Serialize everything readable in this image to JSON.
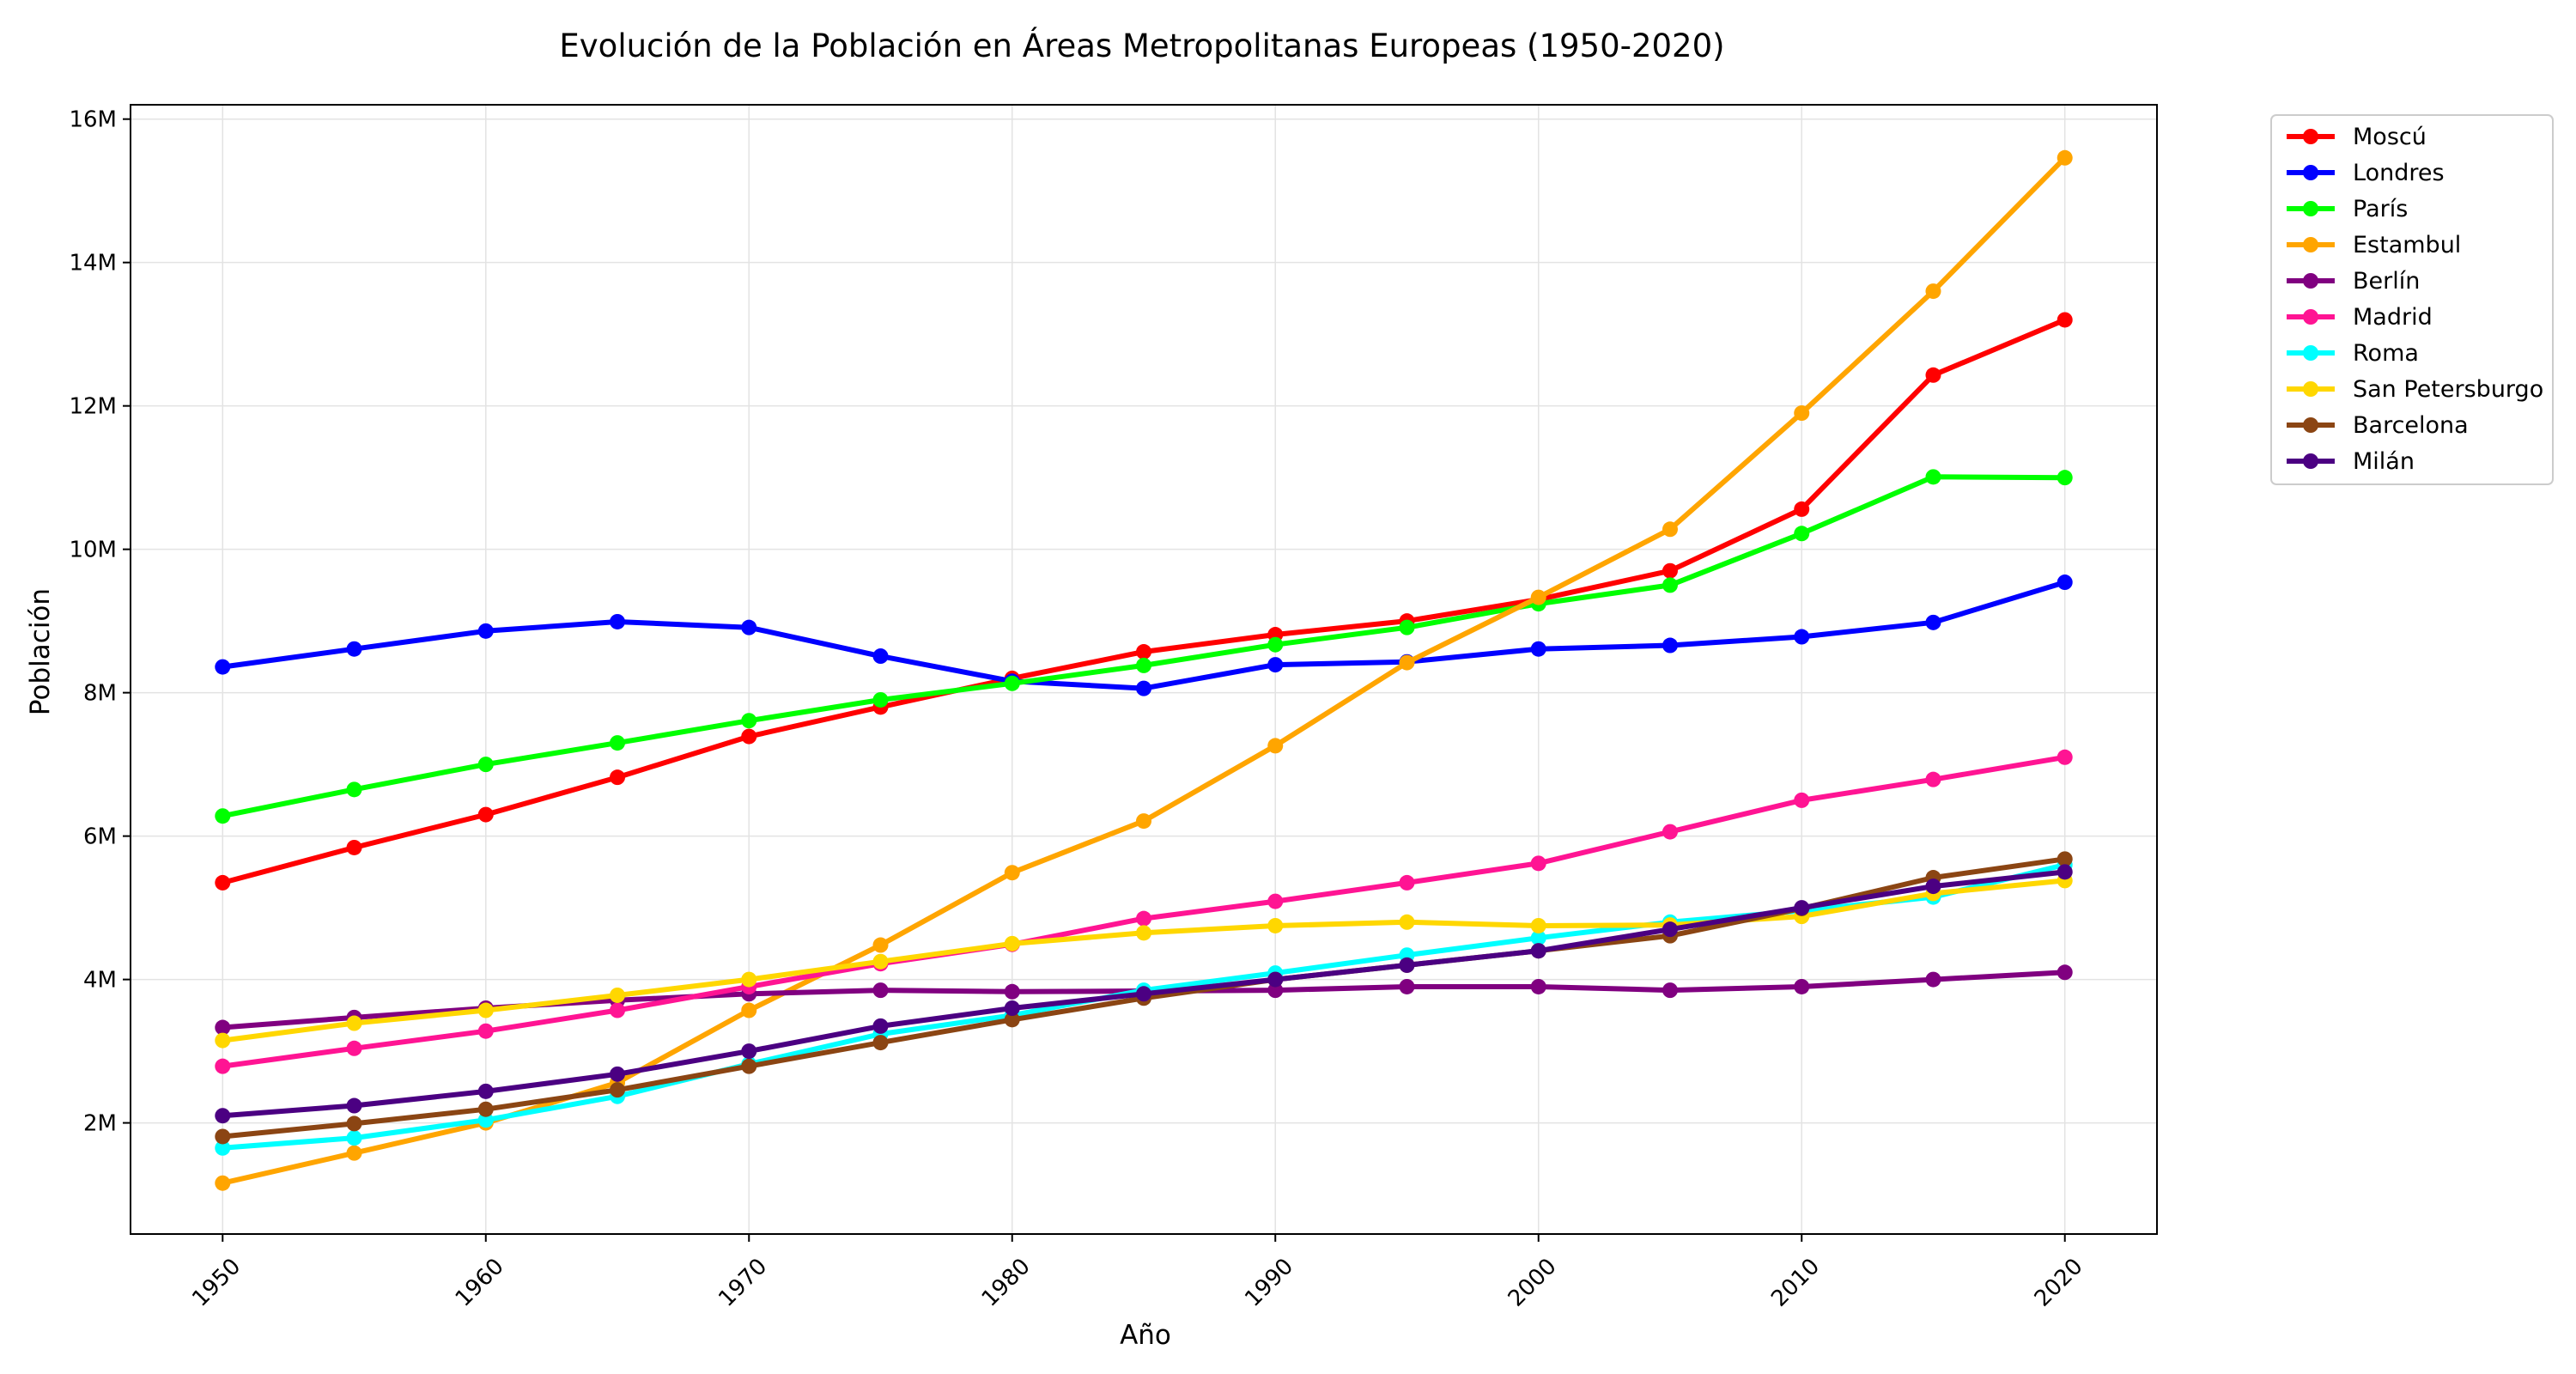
{
  "chart_data": {
    "type": "line",
    "title": "Evolución de la Población en Áreas Metropolitanas Europeas (1950-2020)",
    "xlabel": "Año",
    "ylabel": "Población",
    "x": [
      1950,
      1955,
      1960,
      1965,
      1970,
      1975,
      1980,
      1985,
      1990,
      1995,
      2000,
      2005,
      2010,
      2015,
      2020
    ],
    "xlim": [
      1946.5,
      2023.5
    ],
    "ylim": [
      450000,
      16200000
    ],
    "x_ticks": [
      1950,
      1960,
      1970,
      1980,
      1990,
      2000,
      2010,
      2020
    ],
    "x_tick_labels": [
      "1950",
      "1960",
      "1970",
      "1980",
      "1990",
      "2000",
      "2010",
      "2020"
    ],
    "y_ticks": [
      2000000,
      4000000,
      6000000,
      8000000,
      10000000,
      12000000,
      14000000,
      16000000
    ],
    "y_tick_labels": [
      "2M",
      "4M",
      "6M",
      "8M",
      "10M",
      "12M",
      "14M",
      "16M"
    ],
    "grid": true,
    "legend_position": "outside top-right",
    "series": [
      {
        "name": "Moscú",
        "color": "#ff0000",
        "values": [
          5350000,
          5840000,
          6300000,
          6820000,
          7390000,
          7800000,
          8200000,
          8570000,
          8810000,
          9000000,
          9300000,
          9700000,
          10560000,
          12430000,
          13200000
        ]
      },
      {
        "name": "Londres",
        "color": "#0000ff",
        "values": [
          8360000,
          8610000,
          8860000,
          8990000,
          8910000,
          8510000,
          8160000,
          8060000,
          8390000,
          8430000,
          8610000,
          8660000,
          8780000,
          8980000,
          9540000
        ]
      },
      {
        "name": "París",
        "color": "#00ff00",
        "values": [
          6280000,
          6650000,
          7000000,
          7300000,
          7610000,
          7900000,
          8130000,
          8380000,
          8670000,
          8910000,
          9240000,
          9500000,
          10220000,
          11010000,
          11000000
        ]
      },
      {
        "name": "Estambul",
        "color": "#ffa500",
        "values": [
          1160000,
          1580000,
          2000000,
          2560000,
          3570000,
          4480000,
          5490000,
          6210000,
          7260000,
          8420000,
          9330000,
          10280000,
          11900000,
          13600000,
          15460000
        ]
      },
      {
        "name": "Berlín",
        "color": "#800080",
        "values": [
          3330000,
          3470000,
          3600000,
          3710000,
          3800000,
          3850000,
          3830000,
          3840000,
          3850000,
          3900000,
          3900000,
          3850000,
          3900000,
          4000000,
          4100000
        ]
      },
      {
        "name": "Madrid",
        "color": "#ff1493",
        "values": [
          2790000,
          3040000,
          3280000,
          3570000,
          3900000,
          4220000,
          4490000,
          4850000,
          5090000,
          5350000,
          5620000,
          6060000,
          6500000,
          6790000,
          7100000
        ]
      },
      {
        "name": "Roma",
        "color": "#00ffff",
        "values": [
          1650000,
          1790000,
          2040000,
          2370000,
          2820000,
          3240000,
          3500000,
          3850000,
          4090000,
          4340000,
          4580000,
          4800000,
          4960000,
          5150000,
          5600000
        ]
      },
      {
        "name": "San Petersburgo",
        "color": "#ffd700",
        "values": [
          3150000,
          3390000,
          3570000,
          3780000,
          4000000,
          4250000,
          4500000,
          4650000,
          4750000,
          4800000,
          4750000,
          4760000,
          4880000,
          5200000,
          5380000
        ]
      },
      {
        "name": "Barcelona",
        "color": "#8b4513",
        "values": [
          1810000,
          1990000,
          2190000,
          2460000,
          2790000,
          3120000,
          3440000,
          3740000,
          4000000,
          4200000,
          4400000,
          4610000,
          4990000,
          5420000,
          5680000
        ]
      },
      {
        "name": "Milán",
        "color": "#4b0082",
        "values": [
          2100000,
          2240000,
          2440000,
          2680000,
          3000000,
          3350000,
          3600000,
          3800000,
          4000000,
          4200000,
          4400000,
          4700000,
          5000000,
          5300000,
          5500000
        ]
      }
    ]
  }
}
